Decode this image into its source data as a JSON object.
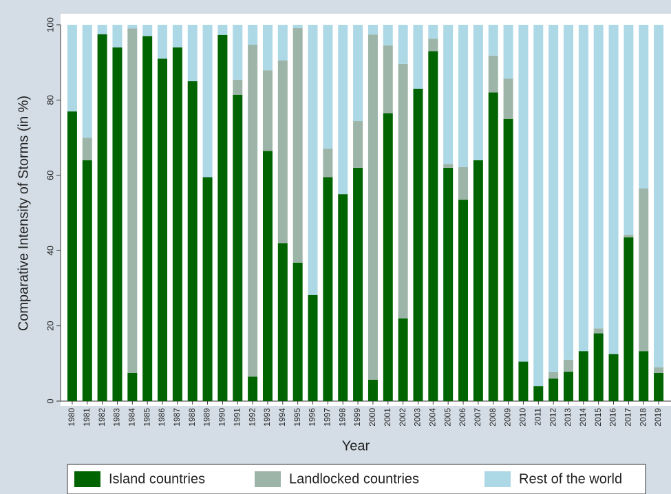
{
  "chart_data": {
    "type": "stacked-bar",
    "x_label": "Year",
    "y_label": "Comparative Intensity of Storms (in %)",
    "categories": [
      "1980",
      "1981",
      "1982",
      "1983",
      "1984",
      "1985",
      "1986",
      "1987",
      "1988",
      "1989",
      "1990",
      "1991",
      "1992",
      "1993",
      "1994",
      "1995",
      "1996",
      "1997",
      "1998",
      "1999",
      "2000",
      "2001",
      "2002",
      "2003",
      "2004",
      "2005",
      "2006",
      "2007",
      "2008",
      "2009",
      "2010",
      "2011",
      "2012",
      "2013",
      "2014",
      "2015",
      "2016",
      "2017",
      "2018",
      "2019"
    ],
    "series": [
      {
        "name": "Island countries",
        "color": "#006400",
        "values": [
          77,
          64,
          97.5,
          94,
          7.5,
          97,
          91,
          94,
          85,
          59.5,
          97.3,
          81.4,
          6.5,
          66.5,
          42,
          36.8,
          28.2,
          59.5,
          55,
          62,
          5.7,
          76.5,
          22,
          83,
          93,
          62,
          53.5,
          64,
          82,
          75,
          10.5,
          4,
          6,
          7.8,
          13.3,
          18,
          12.5,
          43.5,
          13.3,
          7.5
        ]
      },
      {
        "name": "Landlocked countries",
        "color": "#9db5a8",
        "values": [
          0,
          6,
          0,
          0,
          91.5,
          0,
          0,
          0,
          0,
          0,
          0,
          4,
          88.2,
          21.4,
          48.5,
          62.3,
          0,
          7.6,
          0,
          12.4,
          91.7,
          18,
          67.6,
          0,
          3.3,
          1,
          8.7,
          0,
          9.8,
          10.7,
          0,
          0,
          1.7,
          3.2,
          0,
          1.3,
          0,
          0.7,
          43.2,
          1.5
        ]
      },
      {
        "name": "Rest of the world",
        "color": "#add8e6",
        "values": [
          23,
          30,
          2.5,
          6,
          1,
          3,
          9,
          6,
          15,
          40.5,
          2.7,
          14.6,
          5.3,
          12.1,
          9.5,
          0.9,
          71.8,
          32.9,
          45,
          25.6,
          2.6,
          5.5,
          10.4,
          17,
          3.7,
          37,
          37.8,
          36,
          8.2,
          14.3,
          89.5,
          96,
          92.3,
          89,
          86.7,
          80.7,
          87.5,
          55.8,
          43.5,
          91
        ]
      }
    ],
    "ylim": [
      0,
      100
    ],
    "yticks": [
      0,
      20,
      40,
      60,
      80,
      100
    ],
    "grid": false,
    "legend": "bottom"
  }
}
